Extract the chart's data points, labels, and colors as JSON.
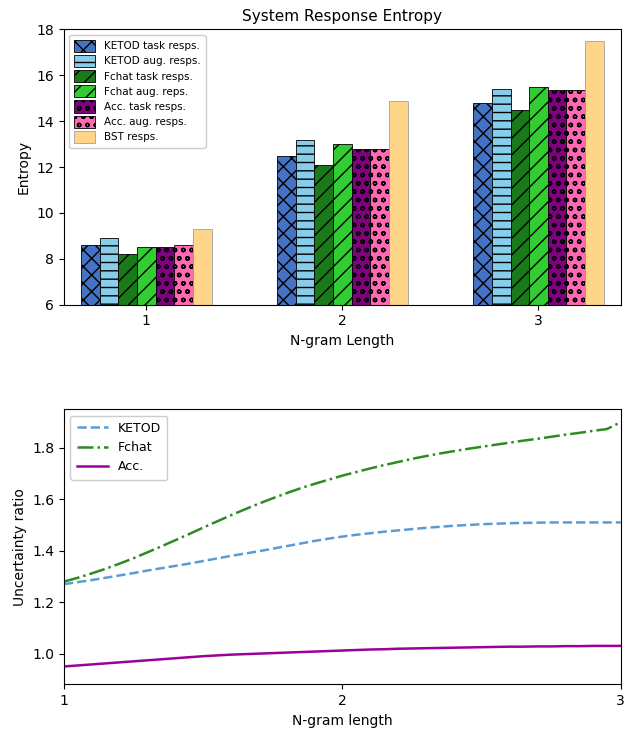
{
  "bar_title": "System Response Entropy",
  "bar_xlabel": "N-gram Length",
  "bar_ylabel": "Entropy",
  "bar_ylim": [
    6,
    18
  ],
  "bar_yticks": [
    6,
    8,
    10,
    12,
    14,
    16,
    18
  ],
  "bar_ngrams": [
    1,
    2,
    3
  ],
  "bar_series": [
    {
      "label": "KETOD task resps.",
      "values": [
        8.6,
        12.5,
        14.8
      ],
      "color": "#4472C4",
      "hatch": "xx",
      "edgecolor": "#000000"
    },
    {
      "label": "KETOD aug. resps.",
      "values": [
        8.9,
        13.2,
        15.4
      ],
      "color": "#87CEEB",
      "hatch": "--",
      "edgecolor": "#000000"
    },
    {
      "label": "Fchat task resps.",
      "values": [
        8.2,
        12.1,
        14.5
      ],
      "color": "#1a7a1a",
      "hatch": "//",
      "edgecolor": "#000000"
    },
    {
      "label": "Fchat aug. reps.",
      "values": [
        8.5,
        13.0,
        15.5
      ],
      "color": "#32CD32",
      "hatch": "//",
      "edgecolor": "#000000"
    },
    {
      "label": "Acc. task resps.",
      "values": [
        8.5,
        12.8,
        15.35
      ],
      "color": "#800080",
      "hatch": "oo",
      "edgecolor": "#000000"
    },
    {
      "label": "Acc. aug. resps.",
      "values": [
        8.6,
        12.8,
        15.35
      ],
      "color": "#FF69B4",
      "hatch": "oo",
      "edgecolor": "#000000"
    },
    {
      "label": "BST resps.",
      "values": [
        9.3,
        14.9,
        17.5
      ],
      "color": "#FFD58A",
      "hatch": "",
      "edgecolor": "#A0A0A0"
    }
  ],
  "line_xlabel": "N-gram length",
  "line_ylabel": "Uncertainty ratio",
  "line_ylim": [
    0.88,
    1.95
  ],
  "line_yticks": [
    1.0,
    1.2,
    1.4,
    1.6,
    1.8
  ],
  "line_xticks": [
    1,
    2,
    3
  ],
  "line_series": [
    {
      "label": "KETOD",
      "x": [
        1.0,
        1.05,
        1.1,
        1.15,
        1.2,
        1.25,
        1.3,
        1.35,
        1.4,
        1.45,
        1.5,
        1.55,
        1.6,
        1.65,
        1.7,
        1.75,
        1.8,
        1.85,
        1.9,
        1.95,
        2.0,
        2.05,
        2.1,
        2.15,
        2.2,
        2.25,
        2.3,
        2.35,
        2.4,
        2.45,
        2.5,
        2.55,
        2.6,
        2.65,
        2.7,
        2.75,
        2.8,
        2.85,
        2.9,
        2.95,
        3.0
      ],
      "y": [
        1.27,
        1.278,
        1.286,
        1.295,
        1.304,
        1.313,
        1.323,
        1.332,
        1.341,
        1.35,
        1.36,
        1.37,
        1.38,
        1.389,
        1.398,
        1.408,
        1.418,
        1.428,
        1.438,
        1.447,
        1.455,
        1.462,
        1.468,
        1.474,
        1.479,
        1.484,
        1.489,
        1.493,
        1.497,
        1.5,
        1.503,
        1.505,
        1.507,
        1.508,
        1.509,
        1.51,
        1.51,
        1.51,
        1.51,
        1.51,
        1.51
      ],
      "color": "#5B9BD5",
      "linestyle": "--",
      "linewidth": 1.8
    },
    {
      "label": "Fchat",
      "x": [
        1.0,
        1.05,
        1.1,
        1.15,
        1.2,
        1.25,
        1.3,
        1.35,
        1.4,
        1.45,
        1.5,
        1.55,
        1.6,
        1.65,
        1.7,
        1.75,
        1.8,
        1.85,
        1.9,
        1.95,
        2.0,
        2.05,
        2.1,
        2.15,
        2.2,
        2.25,
        2.3,
        2.35,
        2.4,
        2.45,
        2.5,
        2.55,
        2.6,
        2.65,
        2.7,
        2.75,
        2.8,
        2.85,
        2.9,
        2.95,
        3.0
      ],
      "y": [
        1.28,
        1.295,
        1.312,
        1.33,
        1.35,
        1.371,
        1.394,
        1.417,
        1.441,
        1.465,
        1.49,
        1.514,
        1.538,
        1.561,
        1.583,
        1.604,
        1.624,
        1.643,
        1.66,
        1.676,
        1.692,
        1.706,
        1.72,
        1.733,
        1.745,
        1.757,
        1.768,
        1.778,
        1.787,
        1.796,
        1.804,
        1.812,
        1.82,
        1.828,
        1.835,
        1.843,
        1.851,
        1.858,
        1.866,
        1.873,
        1.9
      ],
      "color": "#2E8B22",
      "linestyle": "-.",
      "linewidth": 1.8
    },
    {
      "label": "Acc.",
      "x": [
        1.0,
        1.05,
        1.1,
        1.15,
        1.2,
        1.25,
        1.3,
        1.35,
        1.4,
        1.45,
        1.5,
        1.55,
        1.6,
        1.65,
        1.7,
        1.75,
        1.8,
        1.85,
        1.9,
        1.95,
        2.0,
        2.05,
        2.1,
        2.15,
        2.2,
        2.25,
        2.3,
        2.35,
        2.4,
        2.45,
        2.5,
        2.55,
        2.6,
        2.65,
        2.7,
        2.75,
        2.8,
        2.85,
        2.9,
        2.95,
        3.0
      ],
      "y": [
        0.95,
        0.954,
        0.958,
        0.962,
        0.966,
        0.97,
        0.974,
        0.978,
        0.982,
        0.986,
        0.99,
        0.993,
        0.996,
        0.998,
        1.0,
        1.002,
        1.004,
        1.006,
        1.008,
        1.01,
        1.012,
        1.014,
        1.016,
        1.017,
        1.019,
        1.02,
        1.021,
        1.022,
        1.023,
        1.024,
        1.025,
        1.026,
        1.027,
        1.027,
        1.028,
        1.028,
        1.029,
        1.029,
        1.03,
        1.03,
        1.03
      ],
      "color": "#9B009B",
      "linestyle": "-",
      "linewidth": 1.8
    }
  ]
}
